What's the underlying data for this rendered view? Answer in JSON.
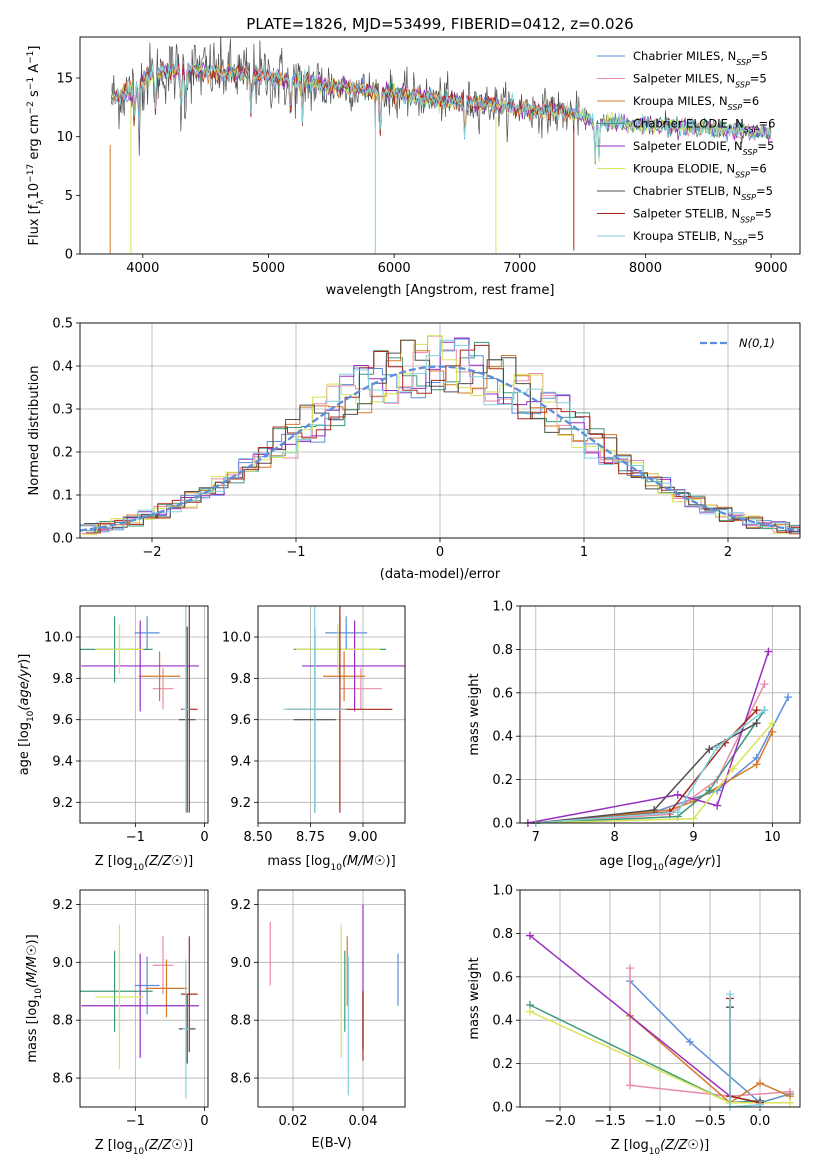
{
  "title": "PLATE=1826, MJD=53499, FIBERID=0412, z=0.026",
  "colors": [
    "#5b8fdb",
    "#e98bab",
    "#d47a2a",
    "#3d9a7b",
    "#9a2ec0",
    "#d8e45a",
    "#505050",
    "#a8281e",
    "#7fd3df"
  ],
  "models": [
    "Chabrier MILES",
    "Salpeter MILES",
    "Kroupa MILES",
    "Chabrier ELODIE",
    "Salpeter ELODIE",
    "Kroupa ELODIE",
    "Chabrier STELIB",
    "Salpeter STELIB",
    "Kroupa STELIB"
  ],
  "nssp": [
    "5",
    "5",
    "6",
    "6",
    "5",
    "6",
    "5",
    "5",
    "5"
  ],
  "chart_data": [
    {
      "id": "spectrum",
      "type": "line",
      "xlabel": "wavelength [Angstrom, rest frame]",
      "ylabel": "Flux [f_λ 10^-17 erg cm^-2 s^-1 A^-1]",
      "xlim": [
        3500,
        9230
      ],
      "ylim": [
        0,
        18.5
      ],
      "xticks": [
        4000,
        5000,
        6000,
        7000,
        8000,
        9000
      ],
      "yticks": [
        0,
        5,
        10,
        15
      ],
      "grid": false,
      "legend": "top-right",
      "continuum": [
        [
          3750,
          13.2
        ],
        [
          3900,
          14.0
        ],
        [
          4100,
          15.5
        ],
        [
          4400,
          15.7
        ],
        [
          4700,
          15.4
        ],
        [
          5000,
          15.1
        ],
        [
          5300,
          14.6
        ],
        [
          5600,
          14.2
        ],
        [
          5900,
          13.8
        ],
        [
          6200,
          13.4
        ],
        [
          6500,
          13.0
        ],
        [
          6800,
          12.7
        ],
        [
          7100,
          12.3
        ],
        [
          7400,
          12.0
        ],
        [
          7600,
          11.3
        ],
        [
          7800,
          11.2
        ],
        [
          8200,
          10.9
        ],
        [
          8600,
          10.6
        ],
        [
          9000,
          10.3
        ]
      ],
      "sharp_drops": [
        [
          3740,
          0
        ],
        [
          3905,
          0
        ],
        [
          5850,
          0
        ],
        [
          6810,
          0
        ],
        [
          7430,
          0.3
        ]
      ]
    },
    {
      "id": "residuals",
      "type": "bar",
      "xlabel": "(data-model)/error",
      "ylabel": "Normed distribution",
      "xlim": [
        -2.5,
        2.5
      ],
      "ylim": [
        0,
        0.5
      ],
      "xticks": [
        -2,
        -1,
        0,
        1,
        2
      ],
      "yticks": [
        0.0,
        0.1,
        0.2,
        0.3,
        0.4,
        0.5
      ],
      "grid": true,
      "legend": "top-right",
      "reference_label": "N(0,1)",
      "bin_width": 0.1
    },
    {
      "id": "age_vs_z",
      "type": "scatter",
      "xlabel": "Z [log10(Z/Z☉)]",
      "ylabel": "age [log10(age/yr)]",
      "xlim": [
        -1.8,
        0.05
      ],
      "ylim": [
        9.1,
        10.15
      ],
      "xticks": [
        -1,
        0
      ],
      "yticks": [
        9.2,
        9.4,
        9.6,
        9.8,
        10.0
      ],
      "grid": true,
      "points": [
        {
          "m": 0,
          "x": -0.83,
          "y": 10.02,
          "xe": 0.18,
          "ye": 0.08
        },
        {
          "m": 1,
          "x": -0.6,
          "y": 9.75,
          "xe": 0.15,
          "ye": 0.1
        },
        {
          "m": 2,
          "x": -0.65,
          "y": 9.81,
          "xe": 0.3,
          "ye": 0.12
        },
        {
          "m": 3,
          "x": -1.3,
          "y": 9.94,
          "xe": 0.55,
          "ye": 0.16
        },
        {
          "m": 4,
          "x": -0.93,
          "y": 9.86,
          "xe": 0.85,
          "ye": 0.22
        },
        {
          "m": 5,
          "x": -1.23,
          "y": 9.94,
          "xe": 0.35,
          "ye": 0.12
        },
        {
          "m": 6,
          "x": -0.25,
          "y": 9.6,
          "xe": 0.12,
          "ye": 0.45
        },
        {
          "m": 7,
          "x": -0.22,
          "y": 9.65,
          "xe": 0.12,
          "ye": 0.5
        },
        {
          "m": 8,
          "x": -0.27,
          "y": 9.65,
          "xe": 0.05,
          "ye": 0.5
        }
      ]
    },
    {
      "id": "age_vs_mass",
      "type": "scatter",
      "xlabel": "mass [log10(M/M☉)]",
      "ylabel": "",
      "xlim": [
        8.5,
        9.2
      ],
      "ylim": [
        9.1,
        10.15
      ],
      "xticks": [
        8.5,
        8.75,
        9.0
      ],
      "yticks": [
        9.2,
        9.4,
        9.6,
        9.8,
        10.0
      ],
      "grid": true,
      "points": [
        {
          "m": 0,
          "x": 8.92,
          "y": 10.02,
          "xe": 0.1,
          "ye": 0.08
        },
        {
          "m": 1,
          "x": 8.99,
          "y": 9.75,
          "xe": 0.1,
          "ye": 0.1
        },
        {
          "m": 2,
          "x": 8.91,
          "y": 9.81,
          "xe": 0.1,
          "ye": 0.12
        },
        {
          "m": 3,
          "x": 8.89,
          "y": 9.94,
          "xe": 0.22,
          "ye": 0.16
        },
        {
          "m": 4,
          "x": 8.96,
          "y": 9.86,
          "xe": 0.25,
          "ye": 0.22
        },
        {
          "m": 5,
          "x": 8.88,
          "y": 9.94,
          "xe": 0.2,
          "ye": 0.12
        },
        {
          "m": 6,
          "x": 8.77,
          "y": 9.6,
          "xe": 0.1,
          "ye": 0.45
        },
        {
          "m": 7,
          "x": 8.89,
          "y": 9.65,
          "xe": 0.25,
          "ye": 0.5
        },
        {
          "m": 8,
          "x": 8.77,
          "y": 9.65,
          "xe": 0.15,
          "ye": 0.5
        }
      ]
    },
    {
      "id": "massweight_vs_age",
      "type": "line",
      "xlabel": "age [log10(age/yr)]",
      "ylabel": "mass weight",
      "xlim": [
        6.8,
        10.35
      ],
      "ylim": [
        0,
        1
      ],
      "xticks": [
        7,
        8,
        9,
        10
      ],
      "yticks": [
        0.0,
        0.2,
        0.4,
        0.6,
        0.8,
        1.0
      ],
      "grid": true,
      "series": [
        {
          "m": 0,
          "pts": [
            [
              7.0,
              0.0
            ],
            [
              8.5,
              0.05
            ],
            [
              9.3,
              0.15
            ],
            [
              9.8,
              0.3
            ],
            [
              10.2,
              0.58
            ]
          ]
        },
        {
          "m": 1,
          "pts": [
            [
              7.0,
              0.0
            ],
            [
              8.7,
              0.04
            ],
            [
              9.3,
              0.2
            ],
            [
              9.9,
              0.64
            ]
          ]
        },
        {
          "m": 2,
          "pts": [
            [
              7.0,
              0.0
            ],
            [
              8.7,
              0.06
            ],
            [
              9.0,
              0.1
            ],
            [
              9.8,
              0.27
            ],
            [
              10.0,
              0.42
            ]
          ]
        },
        {
          "m": 3,
          "pts": [
            [
              7.0,
              0.0
            ],
            [
              8.8,
              0.03
            ],
            [
              9.2,
              0.15
            ],
            [
              9.9,
              0.52
            ]
          ]
        },
        {
          "m": 4,
          "pts": [
            [
              6.9,
              0.0
            ],
            [
              8.8,
              0.13
            ],
            [
              9.3,
              0.08
            ],
            [
              9.95,
              0.79
            ]
          ]
        },
        {
          "m": 5,
          "pts": [
            [
              7.0,
              0.0
            ],
            [
              9.0,
              0.02
            ],
            [
              9.5,
              0.25
            ],
            [
              10.0,
              0.46
            ]
          ]
        },
        {
          "m": 6,
          "pts": [
            [
              7.0,
              0.0
            ],
            [
              8.5,
              0.06
            ],
            [
              9.2,
              0.34
            ],
            [
              9.8,
              0.46
            ]
          ]
        },
        {
          "m": 7,
          "pts": [
            [
              7.0,
              0.0
            ],
            [
              8.7,
              0.05
            ],
            [
              9.4,
              0.37
            ],
            [
              9.8,
              0.52
            ]
          ]
        },
        {
          "m": 8,
          "pts": [
            [
              7.0,
              0.0
            ],
            [
              8.8,
              0.05
            ],
            [
              9.3,
              0.35
            ],
            [
              9.9,
              0.52
            ]
          ]
        }
      ]
    },
    {
      "id": "mass_vs_z",
      "type": "scatter",
      "xlabel": "Z [log10(Z/Z☉)]",
      "ylabel": "mass [log10(M/M☉)]",
      "xlim": [
        -1.8,
        0.05
      ],
      "ylim": [
        8.5,
        9.25
      ],
      "xticks": [
        -1,
        0
      ],
      "yticks": [
        8.6,
        8.8,
        9.0,
        9.2
      ],
      "grid": true,
      "points": [
        {
          "m": 0,
          "x": -0.83,
          "y": 8.92,
          "xe": 0.18,
          "ye": 0.1
        },
        {
          "m": 1,
          "x": -0.6,
          "y": 8.99,
          "xe": 0.15,
          "ye": 0.1
        },
        {
          "m": 2,
          "x": -0.55,
          "y": 8.91,
          "xe": 0.3,
          "ye": 0.1
        },
        {
          "m": 3,
          "x": -1.3,
          "y": 8.9,
          "xe": 0.55,
          "ye": 0.14
        },
        {
          "m": 4,
          "x": -0.93,
          "y": 8.85,
          "xe": 0.85,
          "ye": 0.18
        },
        {
          "m": 5,
          "x": -1.23,
          "y": 8.88,
          "xe": 0.35,
          "ye": 0.25
        },
        {
          "m": 6,
          "x": -0.25,
          "y": 8.77,
          "xe": 0.12,
          "ye": 0.12
        },
        {
          "m": 7,
          "x": -0.22,
          "y": 8.89,
          "xe": 0.12,
          "ye": 0.2
        },
        {
          "m": 8,
          "x": -0.27,
          "y": 8.77,
          "xe": 0.05,
          "ye": 0.24
        }
      ]
    },
    {
      "id": "mass_vs_ebv",
      "type": "scatter",
      "xlabel": "E(B-V)",
      "ylabel": "",
      "xlim": [
        0.01,
        0.052
      ],
      "ylim": [
        8.5,
        9.25
      ],
      "xticks": [
        0.02,
        0.04
      ],
      "yticks": [
        8.6,
        8.8,
        9.0,
        9.2
      ],
      "grid": true,
      "points": [
        {
          "m": 0,
          "x": 0.05,
          "y": 8.94,
          "xe": 0,
          "ye": 0.09
        },
        {
          "m": 1,
          "x": 0.0135,
          "y": 9.03,
          "xe": 0,
          "ye": 0.11
        },
        {
          "m": 2,
          "x": 0.0355,
          "y": 8.97,
          "xe": 0,
          "ye": 0.12
        },
        {
          "m": 3,
          "x": 0.0348,
          "y": 8.9,
          "xe": 0,
          "ye": 0.14
        },
        {
          "m": 4,
          "x": 0.04,
          "y": 8.95,
          "xe": 0,
          "ye": 0.25
        },
        {
          "m": 5,
          "x": 0.0338,
          "y": 8.9,
          "xe": 0,
          "ye": 0.23
        },
        {
          "m": 6,
          "x": 0.04,
          "y": 8.8,
          "xe": 0,
          "ye": 0.1
        },
        {
          "m": 7,
          "x": 0.04,
          "y": 8.78,
          "xe": 0,
          "ye": 0.12
        },
        {
          "m": 8,
          "x": 0.0358,
          "y": 8.78,
          "xe": 0,
          "ye": 0.24
        }
      ]
    },
    {
      "id": "massweight_vs_z",
      "type": "line",
      "xlabel": "Z [log10(Z/Z☉)]",
      "ylabel": "mass weight",
      "xlim": [
        -2.4,
        0.4
      ],
      "ylim": [
        0,
        1
      ],
      "xticks": [
        -2.0,
        -1.5,
        -1.0,
        -0.5,
        0.0
      ],
      "yticks": [
        0.0,
        0.2,
        0.4,
        0.6,
        0.8,
        1.0
      ],
      "grid": true,
      "series": [
        {
          "m": 0,
          "pts": [
            [
              -1.3,
              0.58
            ],
            [
              -0.7,
              0.3
            ],
            [
              0.0,
              0.02
            ],
            [
              0.3,
              0.06
            ]
          ]
        },
        {
          "m": 1,
          "pts": [
            [
              -1.3,
              0.64
            ],
            [
              -1.3,
              0.1
            ],
            [
              -0.3,
              0.05
            ],
            [
              0.3,
              0.07
            ]
          ]
        },
        {
          "m": 2,
          "pts": [
            [
              -1.3,
              0.42
            ],
            [
              -0.3,
              0.02
            ],
            [
              0.0,
              0.11
            ],
            [
              0.3,
              0.05
            ]
          ]
        },
        {
          "m": 3,
          "pts": [
            [
              -2.3,
              0.47
            ],
            [
              -0.3,
              0.02
            ],
            [
              0.0,
              0.03
            ]
          ]
        },
        {
          "m": 4,
          "pts": [
            [
              -2.3,
              0.79
            ],
            [
              -0.3,
              0.05
            ],
            [
              0.0,
              0.02
            ]
          ]
        },
        {
          "m": 5,
          "pts": [
            [
              -2.3,
              0.44
            ],
            [
              -0.3,
              0.02
            ],
            [
              0.3,
              0.02
            ]
          ]
        },
        {
          "m": 6,
          "pts": [
            [
              -0.3,
              0.46
            ],
            [
              -0.3,
              0.05
            ],
            [
              0.0,
              0.02
            ]
          ]
        },
        {
          "m": 7,
          "pts": [
            [
              -0.3,
              0.5
            ],
            [
              -0.3,
              0.05
            ],
            [
              0.0,
              0.02
            ]
          ]
        },
        {
          "m": 8,
          "pts": [
            [
              -0.3,
              0.52
            ],
            [
              -0.3,
              0.0
            ],
            [
              0.0,
              0.01
            ]
          ]
        }
      ]
    }
  ]
}
